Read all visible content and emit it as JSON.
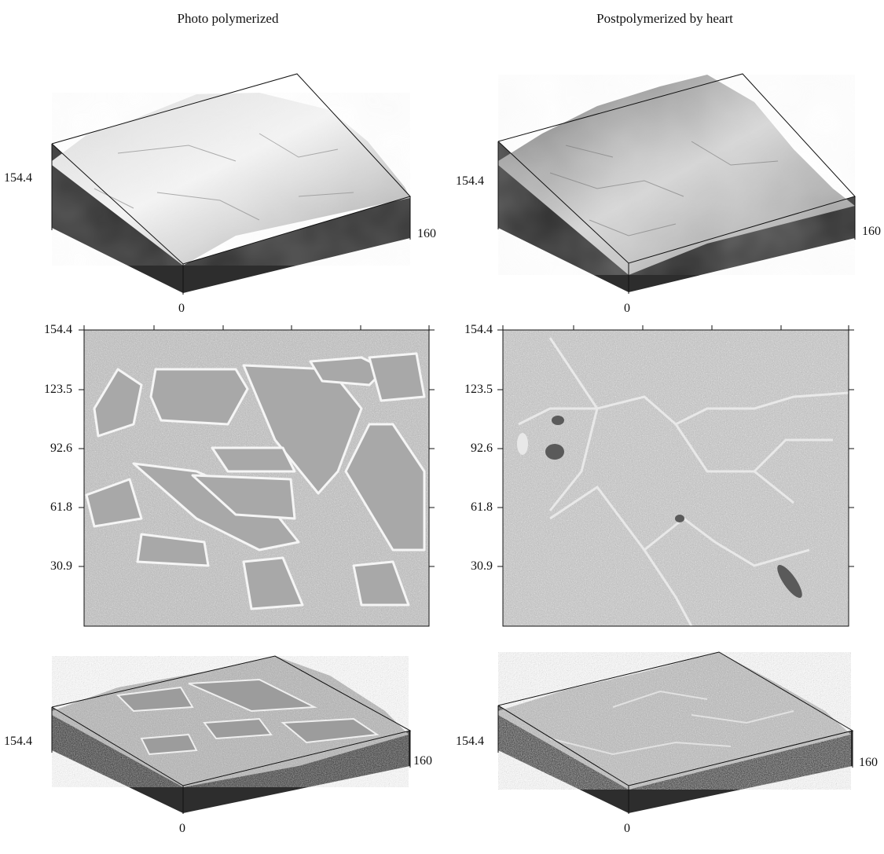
{
  "titles": {
    "left": "Photo polymerized",
    "right": "Postpolymerized by heart"
  },
  "block_labels": {
    "side": "154.4",
    "corner": "160",
    "origin": "0"
  },
  "yticks": [
    "154.4",
    "123.5",
    "92.6",
    "61.8",
    "30.9"
  ],
  "colors": {
    "edge": "#111111",
    "side_dark": "#2b2b2b",
    "surface_light": "#e6e6e6",
    "surface_mid": "#b9b9b9"
  }
}
